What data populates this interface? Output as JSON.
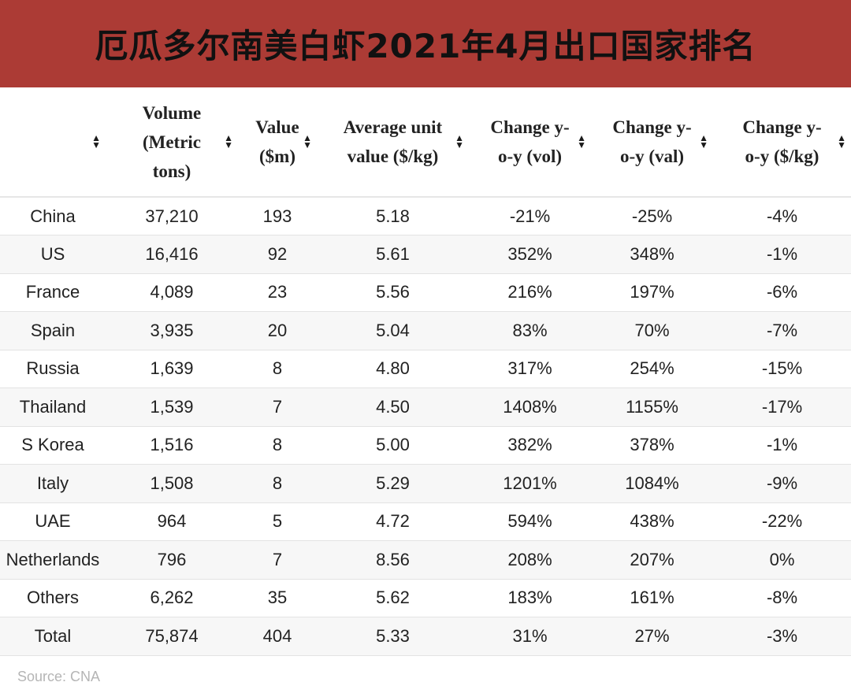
{
  "title": "厄瓜多尔南美白虾2021年4月出口国家排名",
  "table": {
    "headers": [
      "",
      "Volume (Metric tons)",
      "Value ($m)",
      "Average unit value ($/kg)",
      "Change y-o-y (vol)",
      "Change y-o-y (val)",
      "Change y-o-y ($/kg)"
    ],
    "rows": [
      [
        "China",
        "37,210",
        "193",
        "5.18",
        "-21%",
        "-25%",
        "-4%"
      ],
      [
        "US",
        "16,416",
        "92",
        "5.61",
        "352%",
        "348%",
        "-1%"
      ],
      [
        "France",
        "4,089",
        "23",
        "5.56",
        "216%",
        "197%",
        "-6%"
      ],
      [
        "Spain",
        "3,935",
        "20",
        "5.04",
        "83%",
        "70%",
        "-7%"
      ],
      [
        "Russia",
        "1,639",
        "8",
        "4.80",
        "317%",
        "254%",
        "-15%"
      ],
      [
        "Thailand",
        "1,539",
        "7",
        "4.50",
        "1408%",
        "1155%",
        "-17%"
      ],
      [
        "S Korea",
        "1,516",
        "8",
        "5.00",
        "382%",
        "378%",
        "-1%"
      ],
      [
        "Italy",
        "1,508",
        "8",
        "5.29",
        "1201%",
        "1084%",
        "-9%"
      ],
      [
        "UAE",
        "964",
        "5",
        "4.72",
        "594%",
        "438%",
        "-22%"
      ],
      [
        "Netherlands",
        "796",
        "7",
        "8.56",
        "208%",
        "207%",
        "0%"
      ],
      [
        "Others",
        "6,262",
        "35",
        "5.62",
        "183%",
        "161%",
        "-8%"
      ],
      [
        "Total",
        "75,874",
        "404",
        "5.33",
        "31%",
        "27%",
        "-3%"
      ]
    ]
  },
  "source": "Source: CNA",
  "colors": {
    "title_bar": "#ac3b35",
    "row_alt": "#f7f7f7",
    "source_text": "#b5b5b5"
  },
  "icons": {
    "sort": "sort-icon"
  }
}
